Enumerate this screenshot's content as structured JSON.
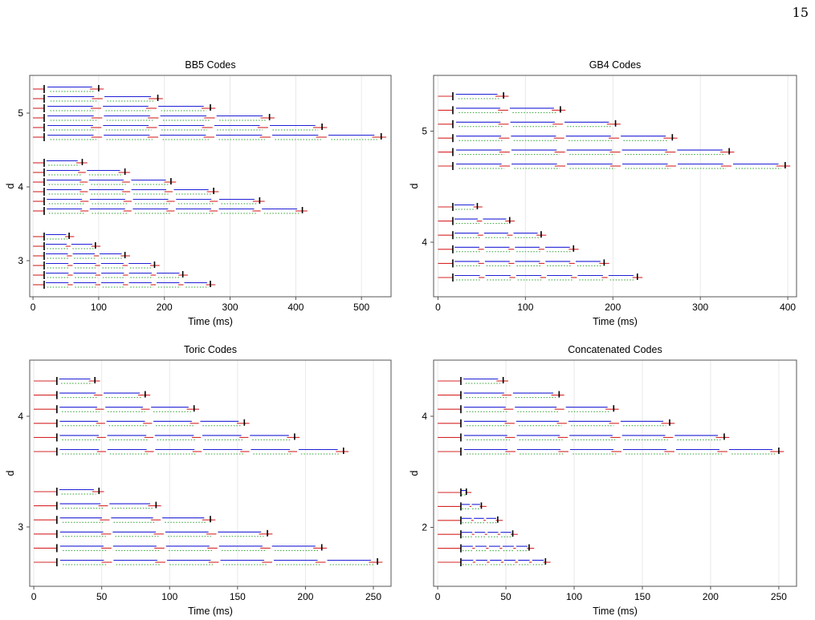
{
  "page_number": "15",
  "colors": {
    "red": "#d62728",
    "blue": "#1f1fd6",
    "green": "#2ca02c",
    "black": "#000000",
    "grid": "#e8e8e8",
    "frame": "#555555"
  },
  "chart_data": [
    {
      "type": "timeline",
      "title": "BB5 Codes",
      "xlabel": "Time (ms)",
      "ylabel": "d",
      "xlim": [
        -5,
        545
      ],
      "xticks": [
        "0",
        "100",
        "200",
        "300",
        "400",
        "500"
      ],
      "xtick_values": [
        0,
        100,
        200,
        300,
        400,
        500
      ],
      "groups": [
        {
          "label": "5",
          "rows": [
            {
              "rounds": 1,
              "end": 100
            },
            {
              "rounds": 2,
              "end": 190
            },
            {
              "rounds": 3,
              "end": 270
            },
            {
              "rounds": 4,
              "end": 360
            },
            {
              "rounds": 5,
              "end": 440
            },
            {
              "rounds": 6,
              "end": 530
            }
          ]
        },
        {
          "label": "4",
          "rows": [
            {
              "rounds": 1,
              "end": 75
            },
            {
              "rounds": 2,
              "end": 140
            },
            {
              "rounds": 3,
              "end": 210
            },
            {
              "rounds": 4,
              "end": 275
            },
            {
              "rounds": 5,
              "end": 345
            },
            {
              "rounds": 6,
              "end": 410
            }
          ]
        },
        {
          "label": "3",
          "rows": [
            {
              "rounds": 1,
              "end": 55
            },
            {
              "rounds": 2,
              "end": 95
            },
            {
              "rounds": 3,
              "end": 140
            },
            {
              "rounds": 4,
              "end": 185
            },
            {
              "rounds": 5,
              "end": 228
            },
            {
              "rounds": 6,
              "end": 270
            }
          ]
        }
      ]
    },
    {
      "type": "timeline",
      "title": "GB4 Codes",
      "xlabel": "Time (ms)",
      "ylabel": "d",
      "xlim": [
        -5,
        410
      ],
      "xticks": [
        "0",
        "100",
        "200",
        "300",
        "400"
      ],
      "xtick_values": [
        0,
        100,
        200,
        300,
        400
      ],
      "groups": [
        {
          "label": "5",
          "rows": [
            {
              "rounds": 1,
              "end": 75
            },
            {
              "rounds": 2,
              "end": 140
            },
            {
              "rounds": 3,
              "end": 203
            },
            {
              "rounds": 4,
              "end": 268
            },
            {
              "rounds": 5,
              "end": 333
            },
            {
              "rounds": 6,
              "end": 397
            }
          ]
        },
        {
          "label": "4",
          "rows": [
            {
              "rounds": 1,
              "end": 45
            },
            {
              "rounds": 2,
              "end": 82
            },
            {
              "rounds": 3,
              "end": 118
            },
            {
              "rounds": 4,
              "end": 155
            },
            {
              "rounds": 5,
              "end": 190
            },
            {
              "rounds": 6,
              "end": 228
            }
          ]
        }
      ]
    },
    {
      "type": "timeline",
      "title": "Toric Codes",
      "xlabel": "Time (ms)",
      "ylabel": "d",
      "xlim": [
        -3,
        263
      ],
      "xticks": [
        "0",
        "50",
        "100",
        "150",
        "200",
        "250"
      ],
      "xtick_values": [
        0,
        50,
        100,
        150,
        200,
        250
      ],
      "groups": [
        {
          "label": "4",
          "rows": [
            {
              "rounds": 1,
              "end": 45
            },
            {
              "rounds": 2,
              "end": 82
            },
            {
              "rounds": 3,
              "end": 118
            },
            {
              "rounds": 4,
              "end": 155
            },
            {
              "rounds": 5,
              "end": 192
            },
            {
              "rounds": 6,
              "end": 228
            }
          ]
        },
        {
          "label": "3",
          "rows": [
            {
              "rounds": 1,
              "end": 48
            },
            {
              "rounds": 2,
              "end": 90
            },
            {
              "rounds": 3,
              "end": 130
            },
            {
              "rounds": 4,
              "end": 172
            },
            {
              "rounds": 5,
              "end": 212
            },
            {
              "rounds": 6,
              "end": 253
            }
          ]
        }
      ]
    },
    {
      "type": "timeline",
      "title": "Concatenated Codes",
      "xlabel": "Time (ms)",
      "ylabel": "d",
      "xlim": [
        -3,
        263
      ],
      "xticks": [
        "0",
        "50",
        "100",
        "150",
        "200",
        "250"
      ],
      "xtick_values": [
        0,
        50,
        100,
        150,
        200,
        250
      ],
      "groups": [
        {
          "label": "4",
          "rows": [
            {
              "rounds": 1,
              "end": 48
            },
            {
              "rounds": 2,
              "end": 89
            },
            {
              "rounds": 3,
              "end": 129
            },
            {
              "rounds": 4,
              "end": 170
            },
            {
              "rounds": 5,
              "end": 210
            },
            {
              "rounds": 6,
              "end": 250
            }
          ]
        },
        {
          "label": "2",
          "rows": [
            {
              "rounds": 1,
              "end": 21
            },
            {
              "rounds": 2,
              "end": 32
            },
            {
              "rounds": 3,
              "end": 44
            },
            {
              "rounds": 4,
              "end": 55
            },
            {
              "rounds": 5,
              "end": 67
            },
            {
              "rounds": 6,
              "end": 79
            }
          ]
        }
      ]
    }
  ]
}
